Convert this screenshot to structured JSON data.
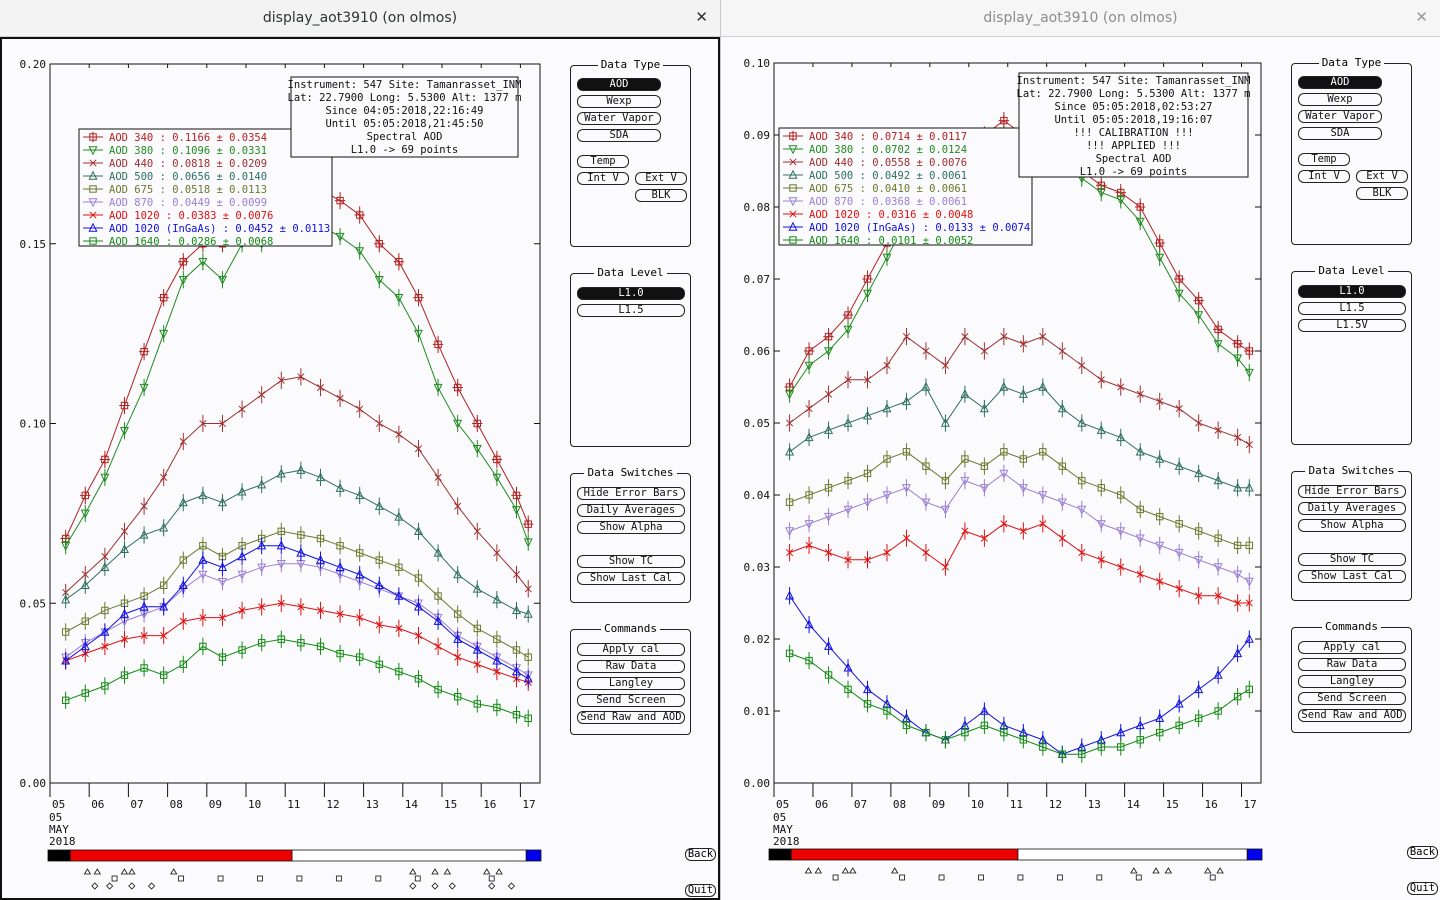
{
  "windows": [
    {
      "title": "display_aot3910 (on olmos)",
      "close_glyph": "✕",
      "info_box": [
        "Instrument: 547 Site: Tamanrasset_INM",
        "Lat: 22.7900 Long: 5.5300 Alt: 1377 m",
        "Since 04:05:2018,22:16:49",
        "Until 05:05:2018,21:45:50",
        "Spectral AOD",
        "L1.0 -> 69 points"
      ],
      "legend": [
        {
          "label": "AOD 340  : 0.1166 ± 0.0354",
          "color": "#b22222",
          "marker": "square-plus"
        },
        {
          "label": "AOD 380  : 0.1096 ± 0.0331",
          "color": "#228b22",
          "marker": "triangle-down"
        },
        {
          "label": "AOD 440  : 0.0818 ± 0.0209",
          "color": "#a0302f",
          "marker": "x"
        },
        {
          "label": "AOD 500  : 0.0656 ± 0.0140",
          "color": "#2f6f5f",
          "marker": "triangle-up"
        },
        {
          "label": "AOD 675  : 0.0518 ± 0.0113",
          "color": "#6b7a2e",
          "marker": "square"
        },
        {
          "label": "AOD 870  : 0.0449 ± 0.0099",
          "color": "#9b7fd4",
          "marker": "triangle-down"
        },
        {
          "label": "AOD 1020  : 0.0383 ± 0.0076",
          "color": "#e01010",
          "marker": "x"
        },
        {
          "label": "AOD 1020 (InGaAs)  : 0.0452 ± 0.0113",
          "color": "#1010e0",
          "marker": "triangle-up"
        },
        {
          "label": "AOD 1640  : 0.0286 ± 0.0068",
          "color": "#128a12",
          "marker": "square"
        }
      ],
      "ymax": 0.2,
      "yticks": [
        "0.00",
        "0.05",
        "0.10",
        "0.15",
        "0.20"
      ],
      "date_bar_colors": [
        "#000000",
        "#ee0000",
        "#ffffff",
        "#0000ee"
      ],
      "date_bar_fractions": [
        0.045,
        0.45,
        0.475,
        0.03
      ]
    },
    {
      "title": "display_aot3910 (on olmos)",
      "close_glyph": "✕",
      "info_box": [
        "Instrument: 547 Site: Tamanrasset_INM",
        "Lat: 22.7900 Long: 5.5300 Alt: 1377 m",
        "Since 05:05:2018,02:53:27",
        "Until 05:05:2018,19:16:07",
        "!!! CALIBRATION !!!",
        "!!!  APPLIED  !!!",
        "Spectral AOD",
        "L1.0 -> 69 points"
      ],
      "legend": [
        {
          "label": "AOD 340  : 0.0714 ± 0.0117",
          "color": "#b22222",
          "marker": "square-plus"
        },
        {
          "label": "AOD 380  : 0.0702 ± 0.0124",
          "color": "#228b22",
          "marker": "triangle-down"
        },
        {
          "label": "AOD 440  : 0.0558 ± 0.0076",
          "color": "#a0302f",
          "marker": "x"
        },
        {
          "label": "AOD 500  : 0.0492 ± 0.0061",
          "color": "#2f6f5f",
          "marker": "triangle-up"
        },
        {
          "label": "AOD 675  : 0.0410 ± 0.0061",
          "color": "#6b7a2e",
          "marker": "square"
        },
        {
          "label": "AOD 870  : 0.0368 ± 0.0061",
          "color": "#9b7fd4",
          "marker": "triangle-down"
        },
        {
          "label": "AOD 1020  : 0.0316 ± 0.0048",
          "color": "#e01010",
          "marker": "x"
        },
        {
          "label": "AOD 1020 (InGaAs)  : 0.0133 ± 0.0074",
          "color": "#1010e0",
          "marker": "triangle-up"
        },
        {
          "label": "AOD 1640  : 0.0101 ± 0.0052",
          "color": "#128a12",
          "marker": "square"
        }
      ],
      "ymax": 0.1,
      "yticks": [
        "0.00",
        "0.01",
        "0.02",
        "0.03",
        "0.04",
        "0.05",
        "0.06",
        "0.07",
        "0.08",
        "0.09",
        "0.10"
      ],
      "date_bar_colors": [
        "#000000",
        "#ee0000",
        "#ffffff",
        "#0000ee"
      ],
      "date_bar_fractions": [
        0.045,
        0.46,
        0.465,
        0.03
      ]
    }
  ],
  "xticks": [
    "05",
    "06",
    "07",
    "08",
    "09",
    "10",
    "11",
    "12",
    "13",
    "14",
    "15",
    "16",
    "17"
  ],
  "xlabel_lines": [
    "05",
    "MAY",
    "2018"
  ],
  "panels": {
    "data_type": {
      "title": "Data Type",
      "buttons": [
        "AOD",
        "Wexp",
        "Water Vapor",
        "SDA",
        "Temp",
        "Int V",
        "Ext V",
        "BLK"
      ]
    },
    "data_level": {
      "title": "Data Level",
      "left_buttons": [
        "L1.0",
        "L1.5"
      ],
      "right_buttons": [
        "L1.0",
        "L1.5",
        "L1.5V"
      ]
    },
    "data_switches": {
      "title": "Data Switches",
      "buttons": [
        "Hide Error Bars",
        "Daily Averages",
        "Show Alpha",
        "Show TC",
        "Show Last Cal"
      ]
    },
    "commands": {
      "title": "Commands",
      "buttons": [
        "Apply cal",
        "Raw Data",
        "Langley",
        "Send Screen",
        "Send Raw and AOD"
      ]
    }
  },
  "back_label": "Back",
  "quit_label": "Quit",
  "chart_data": [
    {
      "type": "line",
      "title": "",
      "xlabel": "05 MAY 2018",
      "ylabel": "",
      "ylim": [
        0,
        0.2
      ],
      "x_hours": [
        5.4,
        5.9,
        6.4,
        6.9,
        7.4,
        7.9,
        8.4,
        8.9,
        9.4,
        9.9,
        10.4,
        10.9,
        11.4,
        11.9,
        12.4,
        12.9,
        13.4,
        13.9,
        14.4,
        14.9,
        15.4,
        15.9,
        16.4,
        16.9,
        17.2
      ],
      "series": [
        {
          "name": "AOD 340",
          "values": [
            0.068,
            0.08,
            0.09,
            0.105,
            0.12,
            0.135,
            0.145,
            0.15,
            0.15,
            0.158,
            0.16,
            0.163,
            0.163,
            0.165,
            0.162,
            0.158,
            0.15,
            0.145,
            0.135,
            0.122,
            0.11,
            0.1,
            0.09,
            0.08,
            0.072
          ]
        },
        {
          "name": "AOD 380",
          "values": [
            0.066,
            0.075,
            0.085,
            0.098,
            0.11,
            0.125,
            0.14,
            0.145,
            0.14,
            0.15,
            0.15,
            0.152,
            0.153,
            0.155,
            0.152,
            0.148,
            0.14,
            0.135,
            0.125,
            0.11,
            0.1,
            0.093,
            0.085,
            0.076,
            0.067
          ]
        },
        {
          "name": "AOD 440",
          "values": [
            0.053,
            0.058,
            0.063,
            0.07,
            0.077,
            0.085,
            0.095,
            0.1,
            0.1,
            0.104,
            0.108,
            0.112,
            0.113,
            0.11,
            0.107,
            0.104,
            0.1,
            0.097,
            0.093,
            0.085,
            0.077,
            0.07,
            0.064,
            0.058,
            0.054
          ]
        },
        {
          "name": "AOD 500",
          "values": [
            0.051,
            0.055,
            0.06,
            0.065,
            0.069,
            0.071,
            0.078,
            0.08,
            0.078,
            0.081,
            0.083,
            0.086,
            0.087,
            0.085,
            0.082,
            0.08,
            0.077,
            0.074,
            0.07,
            0.064,
            0.058,
            0.054,
            0.051,
            0.048,
            0.047
          ]
        },
        {
          "name": "AOD 675",
          "values": [
            0.042,
            0.045,
            0.048,
            0.05,
            0.052,
            0.055,
            0.062,
            0.066,
            0.063,
            0.066,
            0.068,
            0.07,
            0.069,
            0.068,
            0.066,
            0.064,
            0.062,
            0.06,
            0.057,
            0.052,
            0.047,
            0.043,
            0.04,
            0.037,
            0.035
          ]
        },
        {
          "name": "AOD 870",
          "values": [
            0.035,
            0.039,
            0.042,
            0.045,
            0.047,
            0.049,
            0.054,
            0.058,
            0.056,
            0.058,
            0.06,
            0.061,
            0.061,
            0.06,
            0.058,
            0.056,
            0.054,
            0.052,
            0.05,
            0.046,
            0.041,
            0.038,
            0.035,
            0.032,
            0.03
          ]
        },
        {
          "name": "AOD 1020",
          "values": [
            0.034,
            0.036,
            0.038,
            0.04,
            0.041,
            0.041,
            0.045,
            0.046,
            0.046,
            0.048,
            0.049,
            0.05,
            0.049,
            0.048,
            0.047,
            0.046,
            0.044,
            0.043,
            0.041,
            0.038,
            0.035,
            0.033,
            0.031,
            0.029,
            0.028
          ]
        },
        {
          "name": "AOD 1020 (InGaAs)",
          "values": [
            0.034,
            0.038,
            0.042,
            0.047,
            0.049,
            0.049,
            0.055,
            0.062,
            0.06,
            0.063,
            0.066,
            0.066,
            0.064,
            0.062,
            0.06,
            0.058,
            0.055,
            0.052,
            0.049,
            0.045,
            0.04,
            0.037,
            0.034,
            0.031,
            0.029
          ]
        },
        {
          "name": "AOD 1640",
          "values": [
            0.023,
            0.025,
            0.027,
            0.03,
            0.032,
            0.03,
            0.033,
            0.038,
            0.035,
            0.037,
            0.039,
            0.04,
            0.039,
            0.038,
            0.036,
            0.035,
            0.033,
            0.031,
            0.029,
            0.026,
            0.024,
            0.022,
            0.021,
            0.019,
            0.018
          ]
        }
      ]
    },
    {
      "type": "line",
      "title": "",
      "xlabel": "05 MAY 2018",
      "ylabel": "",
      "ylim": [
        0,
        0.1
      ],
      "x_hours": [
        5.4,
        5.9,
        6.4,
        6.9,
        7.4,
        7.9,
        8.4,
        8.9,
        9.4,
        9.9,
        10.4,
        10.9,
        11.4,
        11.9,
        12.4,
        12.9,
        13.4,
        13.9,
        14.4,
        14.9,
        15.4,
        15.9,
        16.4,
        16.9,
        17.2
      ],
      "series": [
        {
          "name": "AOD 340",
          "values": [
            0.055,
            0.06,
            0.062,
            0.065,
            0.07,
            0.075,
            0.08,
            0.085,
            0.085,
            0.088,
            0.09,
            0.092,
            0.09,
            0.088,
            0.087,
            0.085,
            0.083,
            0.082,
            0.08,
            0.075,
            0.07,
            0.067,
            0.063,
            0.061,
            0.06
          ]
        },
        {
          "name": "AOD 380",
          "values": [
            0.054,
            0.058,
            0.06,
            0.063,
            0.068,
            0.073,
            0.078,
            0.083,
            0.084,
            0.086,
            0.088,
            0.09,
            0.089,
            0.087,
            0.086,
            0.084,
            0.082,
            0.081,
            0.078,
            0.073,
            0.068,
            0.065,
            0.061,
            0.059,
            0.057
          ]
        },
        {
          "name": "AOD 440",
          "values": [
            0.05,
            0.052,
            0.054,
            0.056,
            0.056,
            0.058,
            0.062,
            0.06,
            0.058,
            0.062,
            0.06,
            0.062,
            0.061,
            0.062,
            0.06,
            0.058,
            0.056,
            0.055,
            0.054,
            0.053,
            0.052,
            0.05,
            0.049,
            0.048,
            0.047
          ]
        },
        {
          "name": "AOD 500",
          "values": [
            0.046,
            0.048,
            0.049,
            0.05,
            0.051,
            0.052,
            0.053,
            0.055,
            0.05,
            0.054,
            0.052,
            0.055,
            0.054,
            0.055,
            0.052,
            0.05,
            0.049,
            0.048,
            0.046,
            0.045,
            0.044,
            0.043,
            0.042,
            0.041,
            0.041
          ]
        },
        {
          "name": "AOD 675",
          "values": [
            0.039,
            0.04,
            0.041,
            0.042,
            0.043,
            0.045,
            0.046,
            0.044,
            0.042,
            0.045,
            0.044,
            0.046,
            0.045,
            0.046,
            0.044,
            0.042,
            0.041,
            0.04,
            0.038,
            0.037,
            0.036,
            0.035,
            0.034,
            0.033,
            0.033
          ]
        },
        {
          "name": "AOD 870",
          "values": [
            0.035,
            0.036,
            0.037,
            0.038,
            0.039,
            0.04,
            0.041,
            0.039,
            0.038,
            0.042,
            0.041,
            0.043,
            0.041,
            0.04,
            0.039,
            0.038,
            0.036,
            0.035,
            0.034,
            0.033,
            0.032,
            0.031,
            0.03,
            0.029,
            0.028
          ]
        },
        {
          "name": "AOD 1020",
          "values": [
            0.032,
            0.033,
            0.032,
            0.031,
            0.031,
            0.032,
            0.034,
            0.032,
            0.03,
            0.035,
            0.034,
            0.036,
            0.035,
            0.036,
            0.034,
            0.032,
            0.031,
            0.03,
            0.029,
            0.028,
            0.027,
            0.026,
            0.026,
            0.025,
            0.025
          ]
        },
        {
          "name": "AOD 1020 (InGaAs)",
          "values": [
            0.026,
            0.022,
            0.019,
            0.016,
            0.013,
            0.011,
            0.009,
            0.007,
            0.006,
            0.008,
            0.01,
            0.008,
            0.007,
            0.006,
            0.004,
            0.005,
            0.006,
            0.007,
            0.008,
            0.009,
            0.011,
            0.013,
            0.015,
            0.018,
            0.02
          ]
        },
        {
          "name": "AOD 1640",
          "values": [
            0.018,
            0.017,
            0.015,
            0.013,
            0.011,
            0.01,
            0.008,
            0.007,
            0.006,
            0.007,
            0.008,
            0.007,
            0.006,
            0.005,
            0.004,
            0.004,
            0.005,
            0.005,
            0.006,
            0.007,
            0.008,
            0.009,
            0.01,
            0.012,
            0.013
          ]
        }
      ]
    }
  ]
}
